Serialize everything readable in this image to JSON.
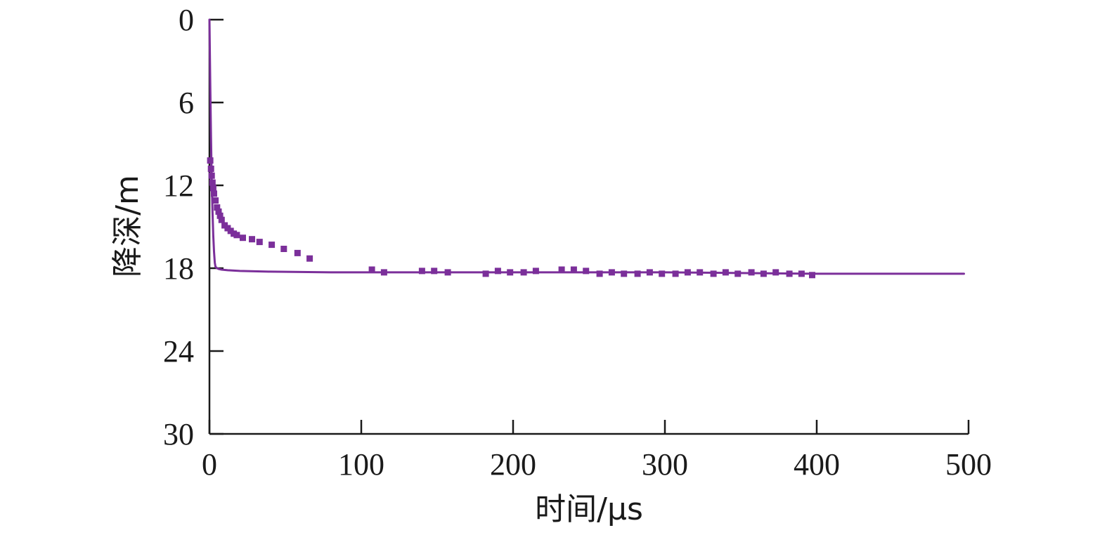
{
  "chart_data": {
    "type": "line",
    "xlabel": "时间/μs",
    "ylabel": "降深/m",
    "xlim": [
      0,
      500
    ],
    "ylim": [
      0,
      30
    ],
    "y_inverted": true,
    "x_ticks": [
      "0",
      "100",
      "200",
      "300",
      "400",
      "500"
    ],
    "y_ticks": [
      "0",
      "6",
      "12",
      "18",
      "24",
      "30"
    ],
    "grid": false,
    "legend": "none",
    "colors": {
      "series": "#7b2f9a",
      "axis": "#1a1a1a"
    },
    "series": [
      {
        "style": "line",
        "x": [
          0,
          0.5,
          1,
          1.5,
          2,
          2.5,
          3,
          3.5,
          4,
          5,
          6,
          8,
          12,
          20,
          40,
          80,
          120,
          200,
          300,
          400,
          497
        ],
        "y": [
          0,
          4.5,
          8.5,
          11.5,
          13.8,
          15.6,
          16.8,
          17.6,
          17.9,
          18.0,
          18.05,
          18.1,
          18.15,
          18.2,
          18.25,
          18.3,
          18.3,
          18.3,
          18.3,
          18.4,
          18.4
        ]
      },
      {
        "style": "markers",
        "marker": "square",
        "x": [
          0.5,
          1,
          1.5,
          2,
          2.5,
          3,
          4,
          5,
          6,
          7,
          8,
          10,
          12,
          14,
          16,
          18,
          22,
          28,
          33,
          41,
          49,
          58,
          66,
          107,
          115,
          140,
          148,
          157,
          182,
          190,
          198,
          207,
          215,
          232,
          240,
          248,
          257,
          265,
          273,
          282,
          290,
          298,
          307,
          315,
          323,
          332,
          340,
          348,
          357,
          365,
          373,
          382,
          390,
          397
        ],
        "y": [
          10.2,
          10.8,
          11.3,
          11.8,
          12.2,
          12.6,
          13.1,
          13.6,
          13.9,
          14.2,
          14.5,
          14.9,
          15.1,
          15.3,
          15.5,
          15.6,
          15.8,
          15.9,
          16.1,
          16.3,
          16.6,
          16.9,
          17.3,
          18.1,
          18.3,
          18.2,
          18.2,
          18.3,
          18.4,
          18.2,
          18.3,
          18.3,
          18.2,
          18.1,
          18.1,
          18.2,
          18.4,
          18.3,
          18.4,
          18.4,
          18.3,
          18.4,
          18.4,
          18.3,
          18.3,
          18.4,
          18.3,
          18.4,
          18.3,
          18.4,
          18.3,
          18.4,
          18.4,
          18.5
        ]
      }
    ]
  }
}
